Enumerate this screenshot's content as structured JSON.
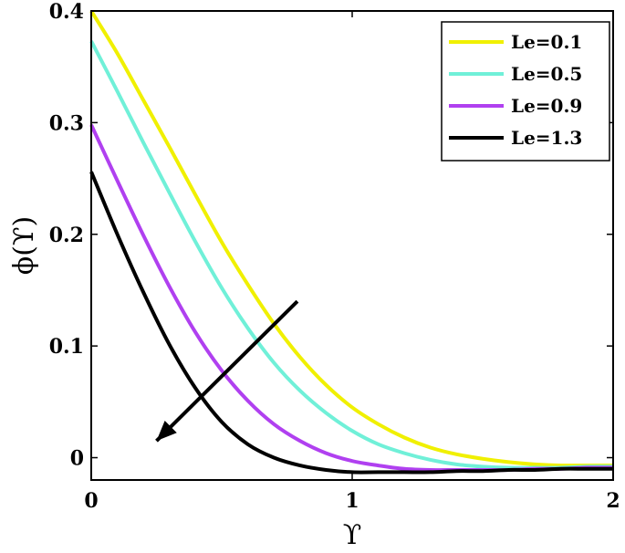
{
  "chart_data": {
    "type": "line",
    "title": "",
    "xlabel": "ϒ",
    "ylabel": "ϕ(ϒ)",
    "xlim": [
      0,
      2
    ],
    "ylim": [
      -0.02,
      0.4
    ],
    "x_ticks": [
      {
        "value": 0,
        "label": "0"
      },
      {
        "value": 1,
        "label": "1"
      },
      {
        "value": 2,
        "label": "2"
      }
    ],
    "y_ticks": [
      {
        "value": 0,
        "label": "0"
      },
      {
        "value": 0.1,
        "label": "0.1"
      },
      {
        "value": 0.2,
        "label": "0.2"
      },
      {
        "value": 0.3,
        "label": "0.3"
      },
      {
        "value": 0.4,
        "label": "0.4"
      }
    ],
    "grid": false,
    "legend_position": "top-right",
    "x": [
      0,
      0.1,
      0.2,
      0.3,
      0.4,
      0.5,
      0.6,
      0.7,
      0.8,
      0.9,
      1.0,
      1.1,
      1.2,
      1.3,
      1.4,
      1.5,
      1.6,
      1.7,
      1.8,
      1.9,
      2.0
    ],
    "series": [
      {
        "name": "Le=0.1",
        "color": "#f0f000",
        "values": [
          0.4,
          0.362,
          0.32,
          0.278,
          0.235,
          0.193,
          0.155,
          0.12,
          0.09,
          0.065,
          0.045,
          0.03,
          0.018,
          0.009,
          0.003,
          -0.001,
          -0.004,
          -0.006,
          -0.007,
          -0.007,
          -0.007
        ]
      },
      {
        "name": "Le=0.5",
        "color": "#70f0d8",
        "values": [
          0.373,
          0.328,
          0.282,
          0.237,
          0.193,
          0.152,
          0.116,
          0.085,
          0.06,
          0.04,
          0.024,
          0.012,
          0.004,
          -0.002,
          -0.006,
          -0.008,
          -0.009,
          -0.009,
          -0.009,
          -0.008,
          -0.008
        ]
      },
      {
        "name": "Le=0.9",
        "color": "#b040f0",
        "values": [
          0.298,
          0.248,
          0.199,
          0.153,
          0.112,
          0.078,
          0.051,
          0.03,
          0.015,
          0.004,
          -0.003,
          -0.007,
          -0.01,
          -0.011,
          -0.011,
          -0.011,
          -0.011,
          -0.01,
          -0.01,
          -0.009,
          -0.009
        ]
      },
      {
        "name": "Le=1.3",
        "color": "#000000",
        "values": [
          0.256,
          0.2,
          0.148,
          0.101,
          0.062,
          0.032,
          0.012,
          0.0,
          -0.007,
          -0.011,
          -0.013,
          -0.013,
          -0.013,
          -0.013,
          -0.012,
          -0.012,
          -0.011,
          -0.011,
          -0.01,
          -0.01,
          -0.01
        ]
      }
    ],
    "annotations": [
      {
        "type": "arrow",
        "from": [
          0.79,
          0.14
        ],
        "to": [
          0.25,
          0.015
        ],
        "meaning": "increasing Le"
      }
    ]
  }
}
